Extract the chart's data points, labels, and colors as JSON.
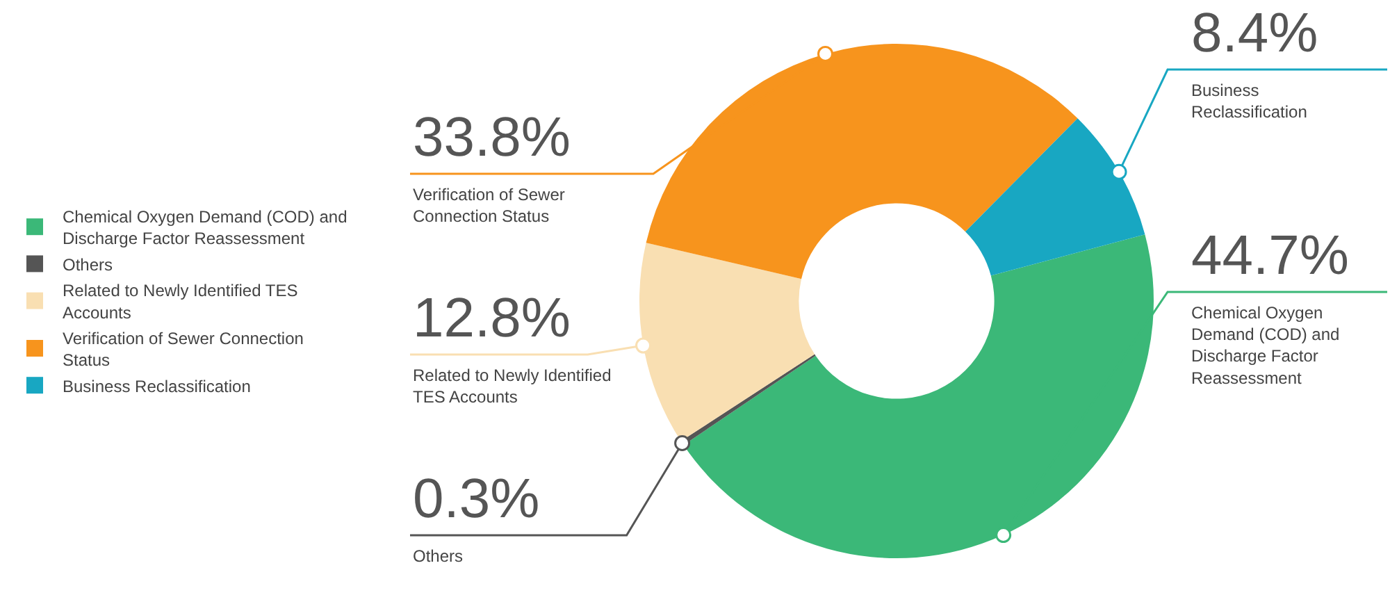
{
  "chart_data": {
    "type": "donut",
    "categories": [
      "Chemical Oxygen Demand (COD) and Discharge Factor Reassessment",
      "Others",
      "Related to Newly Identified TES Accounts",
      "Verification of Sewer Connection Status",
      "Business Reclassification"
    ],
    "values": [
      44.7,
      0.3,
      12.8,
      33.8,
      8.4
    ],
    "colors": [
      "#3bb878",
      "#555555",
      "#f9dfb2",
      "#f7941d",
      "#18a7c2"
    ],
    "value_labels": [
      "44.7%",
      "0.3%",
      "12.8%",
      "33.8%",
      "8.4%"
    ],
    "legend": "left"
  }
}
